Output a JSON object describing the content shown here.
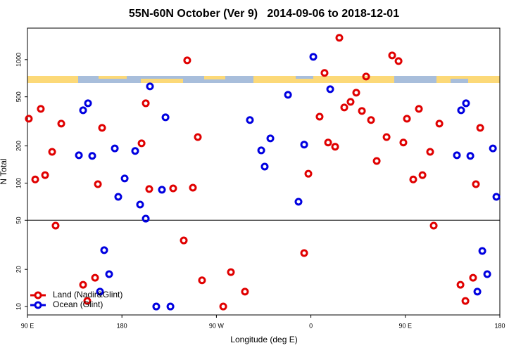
{
  "chart_data": {
    "type": "scatter",
    "title": "55N-60N October (Ver 9)   2014-09-06 to 2018-12-01",
    "x_label": "Longitude (deg E)",
    "y_label": "N Total",
    "log_y": true,
    "hline": 50,
    "legend": "bottom-left",
    "xlim": [
      90,
      540
    ],
    "xticks": [
      {
        "value": 90,
        "label": "90 E"
      },
      180,
      {
        "value": 270,
        "label": "90 W"
      },
      {
        "value": 360,
        "label": "0"
      },
      {
        "value": 450,
        "label": "90 E"
      },
      {
        "value": 540,
        "label": "180"
      }
    ],
    "ylim": [
      8.55,
      1800
    ],
    "yticks": [
      10,
      20,
      50,
      100,
      200,
      500,
      1000
    ],
    "series": [
      {
        "name": "Land (Nadir&Glint)",
        "color": "#e00000",
        "x": [
          91.3,
          97.4,
          102.7,
          106.8,
          113.5,
          116.8,
          122.2,
          143.0,
          147.0,
          154.4,
          157.1,
          161.1,
          198.7,
          202.7,
          206.0,
          228.8,
          238.9,
          242.2,
          247.6,
          252.3,
          256.3,
          276.5,
          283.8,
          297.2,
          353.6,
          357.6,
          368.3,
          373.0,
          376.4,
          383.1,
          387.1,
          391.8,
          397.8,
          403.2,
          408.6,
          412.6,
          417.3,
          422.7,
          432.1,
          437.4,
          443.5,
          448.1,
          451.5,
          457.5,
          462.9,
          466.3,
          473.6,
          477.0,
          482.4,
          502.5,
          507.2,
          514.5,
          517.2,
          521.3
        ],
        "values": [
          332,
          107,
          399,
          116,
          179,
          45.2,
          303,
          15.0,
          11.1,
          17.1,
          98,
          280,
          210,
          443,
          89.5,
          90.6,
          34.3,
          986,
          91.8,
          236,
          16.3,
          10,
          19.0,
          13.2,
          27.1,
          119,
          345,
          780,
          213,
          197,
          1503,
          410,
          455,
          540,
          384,
          730,
          324,
          151,
          236,
          1082,
          974,
          213,
          332,
          107,
          399,
          116,
          179,
          45.2,
          303,
          15.0,
          11.1,
          17.1,
          98,
          280
        ]
      },
      {
        "name": "Ocean (Glint)",
        "color": "#0000e0",
        "x": [
          139.0,
          143.0,
          147.7,
          151.7,
          159.1,
          163.1,
          167.8,
          173.2,
          176.5,
          182.6,
          192.6,
          197.3,
          202.7,
          206.7,
          212.7,
          218.1,
          221.5,
          226.2,
          301.9,
          312.7,
          316.0,
          321.4,
          338.2,
          348.2,
          353.6,
          362.3,
          378.4,
          499.1,
          503.1,
          507.8,
          511.9,
          518.6,
          523.3,
          528.0,
          533.4,
          536.7
        ],
        "values": [
          168,
          389,
          443,
          166,
          13.2,
          28.6,
          18.3,
          191,
          77.4,
          109,
          182,
          67.0,
          51.5,
          607,
          10,
          88.3,
          341,
          10,
          324,
          184,
          136,
          230,
          519,
          70.6,
          205,
          1054,
          576,
          168,
          389,
          443,
          166,
          13.2,
          28.2,
          18.3,
          191,
          77.4
        ]
      }
    ]
  }
}
